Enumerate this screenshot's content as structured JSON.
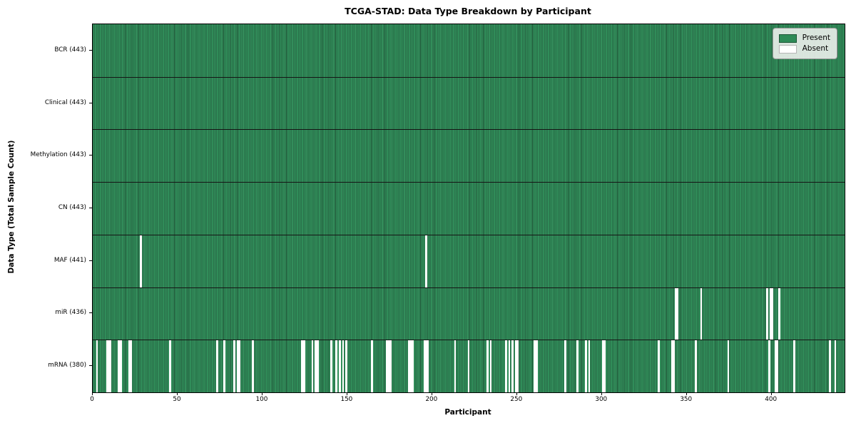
{
  "title": "TCGA-STAD: Data Type Breakdown by Participant",
  "xlabel": "Participant",
  "ylabel": "Data Type (Total Sample Count)",
  "legend": {
    "present": "Present",
    "absent": "Absent"
  },
  "colors": {
    "present": "#2e8b57",
    "present_edge": "#215438",
    "absent": "#ffffff",
    "plot_border": "#000000",
    "legend_bg": "#eceeec"
  },
  "chart_data": {
    "type": "heatmap",
    "title": "TCGA-STAD: Data Type Breakdown by Participant",
    "xlabel": "Participant",
    "ylabel": "Data Type (Total Sample Count)",
    "legend_entries": [
      "Present",
      "Absent"
    ],
    "legend_position": "upper right",
    "n_participants": 443,
    "x_range": [
      0,
      443
    ],
    "x_ticks": [
      0,
      50,
      100,
      150,
      200,
      250,
      300,
      350,
      400
    ],
    "rows": [
      {
        "name": "BCR",
        "label": "BCR (443)",
        "present_count": 443,
        "absent_participants": []
      },
      {
        "name": "Clinical",
        "label": "Clinical (443)",
        "present_count": 443,
        "absent_participants": []
      },
      {
        "name": "Methylation",
        "label": "Methylation (443)",
        "present_count": 443,
        "absent_participants": []
      },
      {
        "name": "CN",
        "label": "CN (443)",
        "present_count": 443,
        "absent_participants": []
      },
      {
        "name": "MAF",
        "label": "MAF (441)",
        "present_count": 441,
        "absent_participants": [
          28,
          196
        ]
      },
      {
        "name": "miR",
        "label": "miR (436)",
        "present_count": 436,
        "absent_participants": [
          343,
          344,
          358,
          397,
          399,
          400,
          404
        ]
      },
      {
        "name": "mRNA",
        "label": "mRNA (380)",
        "present_count": 380,
        "absent_participants": [
          2,
          8,
          9,
          10,
          15,
          16,
          21,
          22,
          45,
          73,
          77,
          83,
          85,
          86,
          94,
          123,
          124,
          129,
          131,
          132,
          140,
          143,
          145,
          147,
          149,
          164,
          173,
          174,
          175,
          186,
          187,
          188,
          195,
          196,
          197,
          213,
          221,
          232,
          234,
          243,
          245,
          247,
          249,
          250,
          260,
          261,
          278,
          285,
          290,
          292,
          300,
          301,
          333,
          341,
          342,
          355,
          374,
          398,
          402,
          403,
          413,
          434,
          437
        ]
      }
    ]
  }
}
